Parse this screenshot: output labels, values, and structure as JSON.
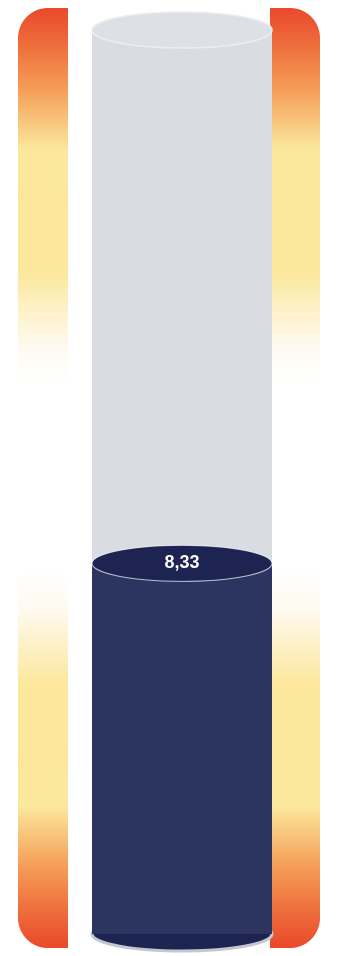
{
  "gauge": {
    "value_label": "8,33",
    "fill_fraction": 0.41,
    "colors": {
      "fill": "#2b3560",
      "fill_top": "#1d2452",
      "fill_bottom": "#1d2452",
      "empty": "#d9dce1",
      "empty_top": "#dde0e5",
      "label": "#ffffff",
      "scale_hot": "#e9492b",
      "scale_warm": "#fce79c",
      "scale_neutral": "#ffffff"
    }
  }
}
